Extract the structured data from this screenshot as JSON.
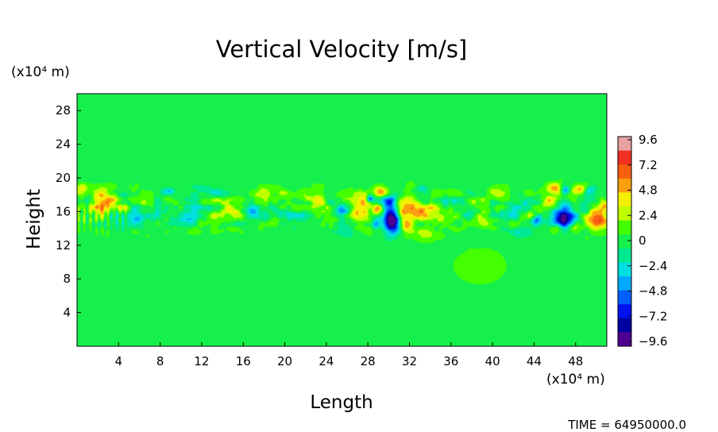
{
  "chart_data": {
    "type": "heatmap",
    "title": "Vertical Velocity [m/s]",
    "xlabel": "Length",
    "ylabel": "Height",
    "x_unit": "(x10⁴ m)",
    "y_unit": "(x10⁴ m)",
    "xlim": [
      0,
      51
    ],
    "ylim": [
      0,
      30
    ],
    "x_ticks": [
      "4",
      "8",
      "12",
      "16",
      "20",
      "24",
      "28",
      "32",
      "36",
      "40",
      "44",
      "48"
    ],
    "y_ticks": [
      "4",
      "8",
      "12",
      "16",
      "20",
      "24",
      "28"
    ],
    "grid": false,
    "colorbar": {
      "position": "right",
      "labels": [
        "9.6",
        "7.2",
        "4.8",
        "2.4",
        "0",
        "−2.4",
        "−4.8",
        "−7.2",
        "−9.6"
      ],
      "colors": [
        "#e8a0a0",
        "#f03020",
        "#f86010",
        "#fca010",
        "#f4f000",
        "#c0ff00",
        "#44ff00",
        "#16f04c",
        "#00e890",
        "#00e0e0",
        "#00a8ff",
        "#0060ff",
        "#0010f0",
        "#0000a0",
        "#500090"
      ]
    },
    "field": {
      "background_value": 0.2,
      "features": [
        {
          "x": 30.2,
          "y": 15.8,
          "value": -9.6,
          "sx": 0.6,
          "sy": 1.4
        },
        {
          "x": 30.5,
          "y": 14.6,
          "value": -6.0,
          "sx": 0.5,
          "sy": 0.8
        },
        {
          "x": 32.0,
          "y": 16.2,
          "value": 7.2,
          "sx": 1.1,
          "sy": 1.1
        },
        {
          "x": 29.0,
          "y": 16.2,
          "value": 7.0,
          "sx": 0.35,
          "sy": 0.5
        },
        {
          "x": 29.2,
          "y": 18.3,
          "value": 6.0,
          "sx": 0.45,
          "sy": 0.4
        },
        {
          "x": 28.2,
          "y": 17.5,
          "value": -6.0,
          "sx": 0.25,
          "sy": 0.3
        },
        {
          "x": 28.8,
          "y": 14.5,
          "value": -4.8,
          "sx": 0.3,
          "sy": 0.4
        },
        {
          "x": 27.3,
          "y": 16.4,
          "value": 6.0,
          "sx": 0.6,
          "sy": 0.9
        },
        {
          "x": 31.8,
          "y": 14.3,
          "value": 4.0,
          "sx": 0.4,
          "sy": 0.5
        },
        {
          "x": 33.2,
          "y": 18.8,
          "value": -3.0,
          "sx": 0.4,
          "sy": 0.3
        },
        {
          "x": 47.0,
          "y": 15.3,
          "value": -9.6,
          "sx": 0.8,
          "sy": 1.0
        },
        {
          "x": 47.8,
          "y": 14.2,
          "value": 4.0,
          "sx": 0.45,
          "sy": 0.45
        },
        {
          "x": 46.2,
          "y": 14.0,
          "value": 4.0,
          "sx": 0.4,
          "sy": 0.4
        },
        {
          "x": 50.0,
          "y": 15.0,
          "value": 6.0,
          "sx": 1.1,
          "sy": 0.7
        },
        {
          "x": 45.3,
          "y": 17.0,
          "value": 3.5,
          "sx": 0.6,
          "sy": 0.6
        },
        {
          "x": 46.0,
          "y": 18.8,
          "value": 5.0,
          "sx": 0.45,
          "sy": 0.4
        },
        {
          "x": 47.0,
          "y": 18.5,
          "value": -4.8,
          "sx": 0.3,
          "sy": 0.35
        },
        {
          "x": 48.4,
          "y": 18.6,
          "value": 4.5,
          "sx": 0.45,
          "sy": 0.4
        },
        {
          "x": 49.4,
          "y": 18.5,
          "value": -3.0,
          "sx": 0.4,
          "sy": 0.35
        },
        {
          "x": 44.3,
          "y": 15.0,
          "value": -4.8,
          "sx": 0.35,
          "sy": 0.35
        },
        {
          "x": 50.8,
          "y": 17.0,
          "value": 4.5,
          "sx": 0.4,
          "sy": 0.5
        },
        {
          "x": 2.6,
          "y": 17.2,
          "value": 4.8,
          "sx": 1.0,
          "sy": 0.9
        },
        {
          "x": 0.4,
          "y": 18.8,
          "value": 4.0,
          "sx": 0.4,
          "sy": 0.4
        },
        {
          "x": 8.8,
          "y": 18.4,
          "value": -4.8,
          "sx": 0.4,
          "sy": 0.35
        },
        {
          "x": 14.8,
          "y": 15.8,
          "value": 3.0,
          "sx": 1.0,
          "sy": 0.7
        },
        {
          "x": 16.8,
          "y": 15.6,
          "value": -2.4,
          "sx": 0.8,
          "sy": 0.6
        },
        {
          "x": 10.8,
          "y": 15.4,
          "value": -2.0,
          "sx": 0.6,
          "sy": 0.5
        },
        {
          "x": 20.8,
          "y": 15.8,
          "value": -2.4,
          "sx": 0.8,
          "sy": 0.5
        },
        {
          "x": 22.8,
          "y": 17.4,
          "value": 2.0,
          "sx": 1.0,
          "sy": 0.6
        },
        {
          "x": 25.2,
          "y": 16.2,
          "value": -2.4,
          "sx": 0.8,
          "sy": 0.6
        },
        {
          "x": 35.0,
          "y": 15.4,
          "value": 2.4,
          "sx": 1.0,
          "sy": 0.7
        },
        {
          "x": 37.2,
          "y": 16.2,
          "value": -2.4,
          "sx": 0.9,
          "sy": 0.6
        },
        {
          "x": 39.5,
          "y": 14.8,
          "value": 2.0,
          "sx": 0.9,
          "sy": 0.6
        },
        {
          "x": 41.6,
          "y": 16.3,
          "value": -2.4,
          "sx": 0.8,
          "sy": 0.6
        },
        {
          "x": 40.5,
          "y": 18.2,
          "value": 2.4,
          "sx": 0.7,
          "sy": 0.5
        },
        {
          "x": 6.0,
          "y": 14.8,
          "value": -2.0,
          "sx": 0.9,
          "sy": 0.6
        },
        {
          "x": 13.0,
          "y": 18.3,
          "value": -1.8,
          "sx": 1.2,
          "sy": 0.5
        },
        {
          "x": 18.6,
          "y": 18.2,
          "value": 1.8,
          "sx": 1.0,
          "sy": 0.5
        },
        {
          "x": 26.0,
          "y": 13.6,
          "value": -2.0,
          "sx": 0.7,
          "sy": 0.5
        },
        {
          "x": 33.8,
          "y": 13.2,
          "value": 1.8,
          "sx": 0.8,
          "sy": 0.5
        },
        {
          "x": 43.0,
          "y": 13.4,
          "value": -2.0,
          "sx": 0.8,
          "sy": 0.5
        },
        {
          "x": 38.8,
          "y": 9.5,
          "value": 1.2,
          "sx": 1.8,
          "sy": 1.5
        },
        {
          "x": 20.0,
          "y": 10.5,
          "value": -0.8,
          "sx": 2.5,
          "sy": 1.5
        }
      ]
    }
  },
  "footer": {
    "time_label": "TIME =  64950000.0"
  }
}
